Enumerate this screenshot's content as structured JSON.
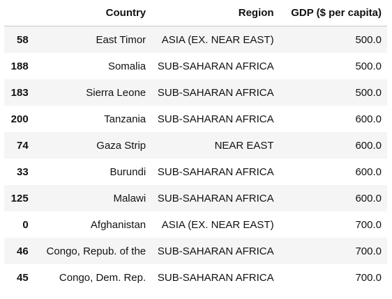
{
  "table": {
    "columns": [
      "",
      "Country",
      "Region",
      "GDP ($ per capita)"
    ],
    "rows": [
      {
        "index": "58",
        "country": "East Timor",
        "region": "ASIA (EX. NEAR EAST)",
        "gdp": "500.0"
      },
      {
        "index": "188",
        "country": "Somalia",
        "region": "SUB-SAHARAN AFRICA",
        "gdp": "500.0"
      },
      {
        "index": "183",
        "country": "Sierra Leone",
        "region": "SUB-SAHARAN AFRICA",
        "gdp": "500.0"
      },
      {
        "index": "200",
        "country": "Tanzania",
        "region": "SUB-SAHARAN AFRICA",
        "gdp": "600.0"
      },
      {
        "index": "74",
        "country": "Gaza Strip",
        "region": "NEAR EAST",
        "gdp": "600.0"
      },
      {
        "index": "33",
        "country": "Burundi",
        "region": "SUB-SAHARAN AFRICA",
        "gdp": "600.0"
      },
      {
        "index": "125",
        "country": "Malawi",
        "region": "SUB-SAHARAN AFRICA",
        "gdp": "600.0"
      },
      {
        "index": "0",
        "country": "Afghanistan",
        "region": "ASIA (EX. NEAR EAST)",
        "gdp": "700.0"
      },
      {
        "index": "46",
        "country": "Congo, Repub. of the",
        "region": "SUB-SAHARAN AFRICA",
        "gdp": "700.0"
      },
      {
        "index": "45",
        "country": "Congo, Dem. Rep.",
        "region": "SUB-SAHARAN AFRICA",
        "gdp": "700.0"
      }
    ]
  }
}
